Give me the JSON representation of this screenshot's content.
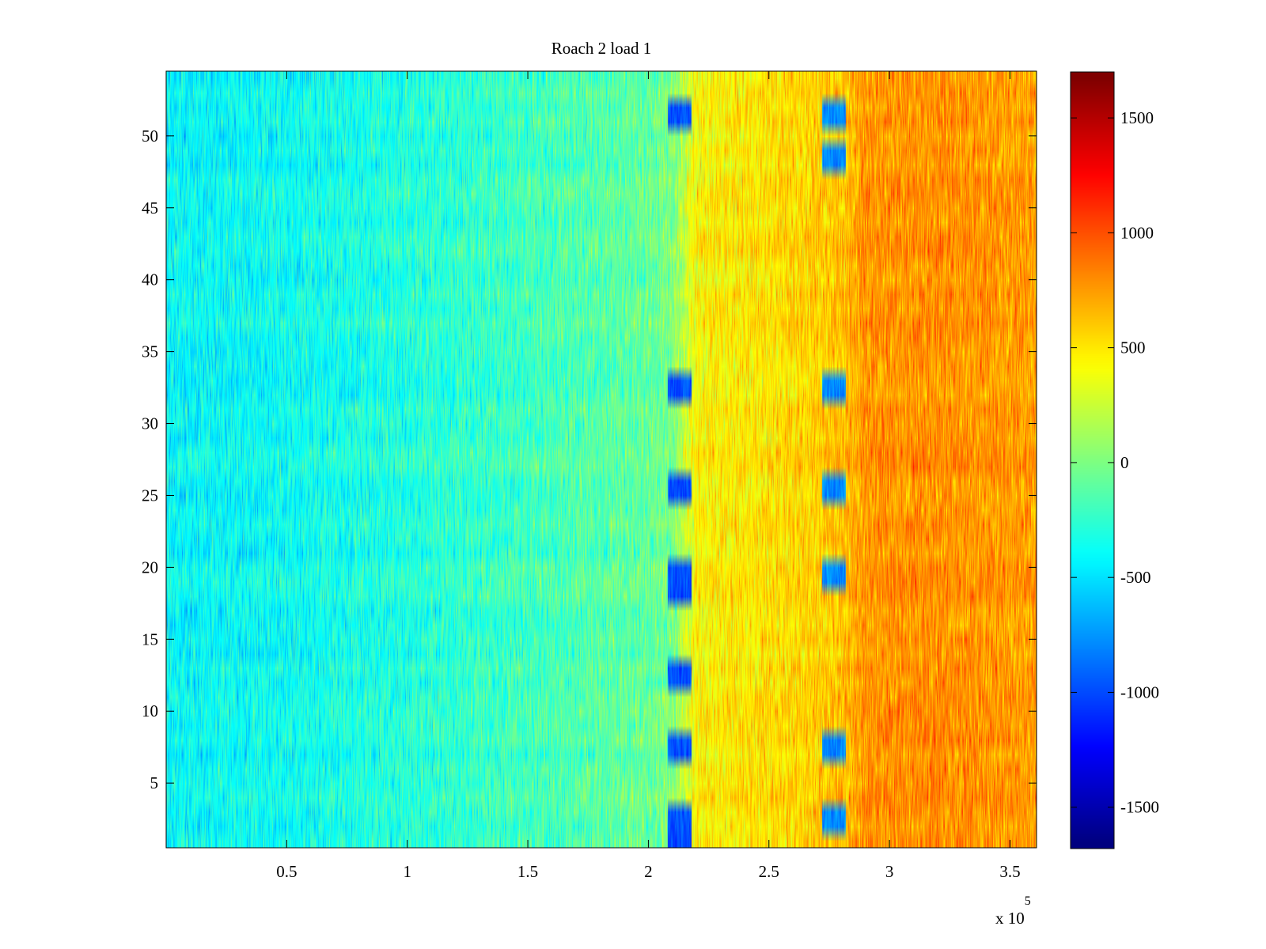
{
  "chart_data": {
    "type": "heatmap",
    "title": "Roach 2 load 1",
    "xlabel": "",
    "ylabel": "",
    "x_multiplier_label": "x 10",
    "x_multiplier_exponent": "5",
    "xlim": [
      1,
      361000
    ],
    "ylim": [
      0.5,
      54.5
    ],
    "x_ticks": [
      0.5,
      1,
      1.5,
      2,
      2.5,
      3,
      3.5
    ],
    "x_tick_labels": [
      "0.5",
      "1",
      "1.5",
      "2",
      "2.5",
      "3",
      "3.5"
    ],
    "y_ticks": [
      5,
      10,
      15,
      20,
      25,
      30,
      35,
      40,
      45,
      50
    ],
    "y_tick_labels": [
      "5",
      "10",
      "15",
      "20",
      "25",
      "30",
      "35",
      "40",
      "45",
      "50"
    ],
    "rows": 54,
    "colormap": "jet",
    "clim": [
      -1680,
      1700
    ],
    "colorbar_ticks": [
      -1500,
      -1000,
      -500,
      0,
      500,
      1000,
      1500
    ],
    "colorbar_tick_labels": [
      "-1500",
      "-1000",
      "-500",
      "0",
      "500",
      "1000",
      "1500"
    ],
    "trend_profile": {
      "description": "approximate mean value vs x (x in units of 10^5), with per-pixel noise",
      "x": [
        0.0,
        0.5,
        1.0,
        1.5,
        2.0,
        2.1,
        2.2,
        2.5,
        2.8,
        2.9,
        3.2,
        3.6
      ],
      "mean": [
        -420,
        -380,
        -300,
        -200,
        -80,
        0,
        450,
        520,
        620,
        780,
        800,
        750
      ],
      "noise_amplitude": 200
    },
    "low_value_patches": [
      {
        "x_range": [
          2.08,
          2.18
        ],
        "rows": [
          1,
          2,
          3,
          7,
          8,
          12,
          13,
          18,
          19,
          20,
          25,
          26,
          32,
          33,
          51,
          52
        ],
        "value": -1000
      },
      {
        "x_range": [
          2.72,
          2.82
        ],
        "rows": [
          2,
          3,
          7,
          8,
          19,
          20,
          25,
          26,
          32,
          33,
          48,
          49,
          51,
          52
        ],
        "value": -800
      }
    ]
  }
}
